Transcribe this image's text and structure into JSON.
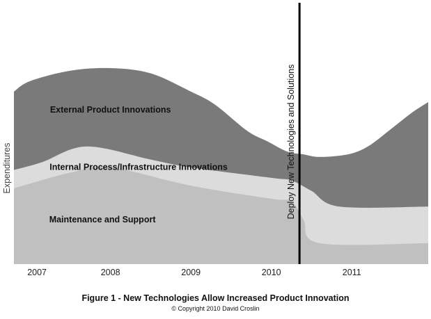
{
  "chart_data": {
    "type": "area",
    "ylabel": "Expenditures",
    "x_categories": [
      "2007",
      "2008",
      "2009",
      "2010",
      "2011"
    ],
    "x_range": [
      2006.8,
      2011.95
    ],
    "y_range": [
      0,
      100
    ],
    "series": [
      {
        "name": "Maintenance and Support",
        "color": "#c0c0c0",
        "points": [
          [
            2006.8,
            29
          ],
          [
            2007.5,
            35
          ],
          [
            2008.0,
            37
          ],
          [
            2009.0,
            30
          ],
          [
            2010.0,
            25
          ],
          [
            2010.25,
            24
          ],
          [
            2010.4,
            17
          ],
          [
            2010.6,
            8
          ],
          [
            2011.95,
            8
          ]
        ]
      },
      {
        "name": "Internal Process/Infrastructure Innovations",
        "color": "#dcdcdc",
        "points": [
          [
            2006.8,
            36
          ],
          [
            2007.15,
            39
          ],
          [
            2007.7,
            45
          ],
          [
            2008.5,
            40
          ],
          [
            2009.0,
            37
          ],
          [
            2010.0,
            33
          ],
          [
            2010.25,
            32
          ],
          [
            2010.5,
            28
          ],
          [
            2010.85,
            22
          ],
          [
            2011.95,
            22
          ]
        ]
      },
      {
        "name": "External Product Innovations",
        "color": "#7a7a7a",
        "points": [
          [
            2006.8,
            66
          ],
          [
            2007.0,
            70
          ],
          [
            2007.5,
            74
          ],
          [
            2008.0,
            75
          ],
          [
            2008.5,
            73
          ],
          [
            2009.0,
            66
          ],
          [
            2009.3,
            61
          ],
          [
            2009.7,
            51
          ],
          [
            2009.95,
            47
          ],
          [
            2010.2,
            43
          ],
          [
            2010.4,
            42
          ],
          [
            2010.6,
            41
          ],
          [
            2010.95,
            42
          ],
          [
            2011.2,
            45
          ],
          [
            2011.5,
            52
          ],
          [
            2011.75,
            58
          ],
          [
            2011.95,
            62
          ]
        ]
      }
    ],
    "annotations": [
      {
        "text": "External Product Innovations",
        "x": 2008.0,
        "y": 58
      },
      {
        "text": "Internal Process/Infrastructure Innovations",
        "x": 2008.35,
        "y": 36
      },
      {
        "text": "Maintenance and Support",
        "x": 2007.9,
        "y": 16
      }
    ],
    "milestone": {
      "x": 2010.35,
      "label": "Deploy New Technologies and Solutions"
    },
    "grid": false
  },
  "caption": {
    "title": "Figure 1 - New Technologies Allow Increased Product Innovation",
    "copyright": "© Copyright 2010 David Croslin"
  }
}
